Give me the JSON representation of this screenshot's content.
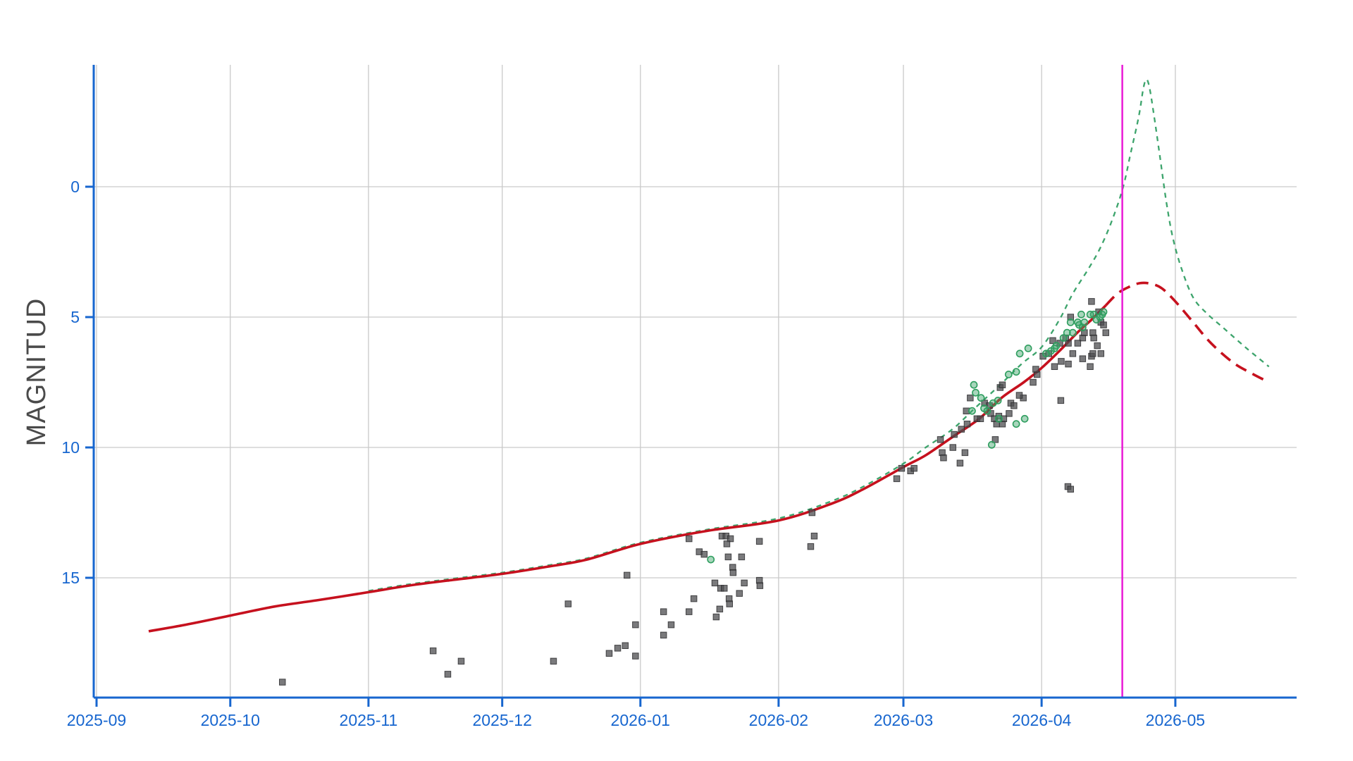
{
  "chart_data": {
    "type": "scatter",
    "title": "",
    "ylabel": "MAGNITUD",
    "xlabel": "",
    "x_axis": {
      "unit": "days since 2025-09-01",
      "ticks": [
        {
          "label": "2025-09",
          "day": 0
        },
        {
          "label": "2025-10",
          "day": 30
        },
        {
          "label": "2025-11",
          "day": 61
        },
        {
          "label": "2025-12",
          "day": 91
        },
        {
          "label": "2026-01",
          "day": 122
        },
        {
          "label": "2026-02",
          "day": 153
        },
        {
          "label": "2026-03",
          "day": 181
        },
        {
          "label": "2026-04",
          "day": 212
        },
        {
          "label": "2026-05",
          "day": 242
        }
      ],
      "domain_days": [
        -0.6,
        269
      ]
    },
    "y_axis": {
      "ticks": [
        0,
        5,
        10,
        15
      ],
      "inverted": true,
      "domain_mag": [
        -4.68,
        19.6
      ],
      "grid": true
    },
    "marker_line": {
      "day": 230.1,
      "approx_date": "2026-04-19"
    },
    "colors": {
      "axis": "#1766cf",
      "grid": "#c9c9c9",
      "red_curve": "#c6111e",
      "green_curve": "#3da46c",
      "marker_line": "#e91ad6",
      "square_fill": "#4e4e50",
      "square_stroke": "#2e2e30",
      "circle_fill": "#3fa56b",
      "circle_stroke": "#2f9e5f",
      "y_title": "#4a4a4a"
    },
    "series": [
      {
        "name": "red-solid-curve",
        "type": "line",
        "style": "solid",
        "points": [
          [
            11.7,
            17.05
          ],
          [
            20,
            16.8
          ],
          [
            30,
            16.45
          ],
          [
            40,
            16.1
          ],
          [
            50,
            15.85
          ],
          [
            61,
            15.55
          ],
          [
            70,
            15.3
          ],
          [
            80,
            15.08
          ],
          [
            91,
            14.85
          ],
          [
            102,
            14.55
          ],
          [
            110,
            14.3
          ],
          [
            122,
            13.7
          ],
          [
            137,
            13.2
          ],
          [
            153,
            12.8
          ],
          [
            165,
            12.15
          ],
          [
            172,
            11.6
          ],
          [
            181,
            10.75
          ],
          [
            186,
            10.3
          ],
          [
            192,
            9.6
          ],
          [
            198,
            8.9
          ],
          [
            203,
            8.1
          ],
          [
            208,
            7.5
          ],
          [
            212,
            6.95
          ],
          [
            216,
            6.3
          ],
          [
            220,
            5.6
          ],
          [
            223.5,
            5.05
          ],
          [
            226.4,
            4.55
          ]
        ]
      },
      {
        "name": "red-dashed-curve",
        "type": "line",
        "style": "dashed",
        "points": [
          [
            226.4,
            4.55
          ],
          [
            229,
            4.1
          ],
          [
            231.5,
            3.85
          ],
          [
            234,
            3.7
          ],
          [
            236.5,
            3.72
          ],
          [
            239,
            3.9
          ],
          [
            242,
            4.4
          ],
          [
            246,
            5.2
          ],
          [
            250,
            6.0
          ],
          [
            255,
            6.75
          ],
          [
            259,
            7.15
          ],
          [
            263,
            7.5
          ]
        ]
      },
      {
        "name": "green-dashed-curve",
        "type": "line",
        "style": "dashed",
        "points": [
          [
            61,
            15.5
          ],
          [
            70,
            15.25
          ],
          [
            80,
            15.03
          ],
          [
            91,
            14.8
          ],
          [
            102,
            14.5
          ],
          [
            110,
            14.25
          ],
          [
            122,
            13.65
          ],
          [
            137,
            13.15
          ],
          [
            153,
            12.72
          ],
          [
            165,
            12.05
          ],
          [
            172,
            11.5
          ],
          [
            181,
            10.62
          ],
          [
            186,
            10.0
          ],
          [
            192,
            9.3
          ],
          [
            197,
            8.5
          ],
          [
            203,
            7.55
          ],
          [
            207.5,
            6.8
          ],
          [
            212,
            6.15
          ],
          [
            216,
            5.1
          ],
          [
            219,
            4.1
          ],
          [
            222.5,
            3.15
          ],
          [
            225.3,
            2.3
          ],
          [
            228,
            1.2
          ],
          [
            230.3,
            0.0
          ],
          [
            232,
            -1.3
          ],
          [
            233.8,
            -2.7
          ],
          [
            234.8,
            -3.75
          ],
          [
            235.5,
            -4.12
          ],
          [
            236.2,
            -3.8
          ],
          [
            237.2,
            -2.75
          ],
          [
            238.5,
            -1.2
          ],
          [
            240,
            0.6
          ],
          [
            241.5,
            2.0
          ],
          [
            243.5,
            3.2
          ],
          [
            246,
            4.25
          ],
          [
            249,
            4.85
          ],
          [
            253,
            5.45
          ],
          [
            258,
            6.2
          ],
          [
            263,
            6.9
          ]
        ]
      },
      {
        "name": "dark-square-observations",
        "type": "scatter",
        "marker": "square",
        "points": [
          [
            41.7,
            19.0
          ],
          [
            75.5,
            17.8
          ],
          [
            78.8,
            18.7
          ],
          [
            81.8,
            18.2
          ],
          [
            102.5,
            18.2
          ],
          [
            105.8,
            16.0
          ],
          [
            115.0,
            17.9
          ],
          [
            116.9,
            17.7
          ],
          [
            118.6,
            17.6
          ],
          [
            119.0,
            14.9
          ],
          [
            120.9,
            16.8
          ],
          [
            120.9,
            18.0
          ],
          [
            127.2,
            16.3
          ],
          [
            127.2,
            17.2
          ],
          [
            128.9,
            16.8
          ],
          [
            132.9,
            16.3
          ],
          [
            132.9,
            13.5
          ],
          [
            134.0,
            15.8
          ],
          [
            135.2,
            14.0
          ],
          [
            136.3,
            14.1
          ],
          [
            138.7,
            15.2
          ],
          [
            139.0,
            16.5
          ],
          [
            139.8,
            16.2
          ],
          [
            140.0,
            15.4
          ],
          [
            140.8,
            15.4
          ],
          [
            140.3,
            13.4
          ],
          [
            141.2,
            13.4
          ],
          [
            142.2,
            13.5
          ],
          [
            141.4,
            13.7
          ],
          [
            141.7,
            14.2
          ],
          [
            141.9,
            15.8
          ],
          [
            142.0,
            16.0
          ],
          [
            142.7,
            14.6
          ],
          [
            142.8,
            14.8
          ],
          [
            144.2,
            15.6
          ],
          [
            144.7,
            14.2
          ],
          [
            145.3,
            15.2
          ],
          [
            148.7,
            13.6
          ],
          [
            148.7,
            15.1
          ],
          [
            148.8,
            15.3
          ],
          [
            160.5,
            12.5
          ],
          [
            161.0,
            13.4
          ],
          [
            160.2,
            13.8
          ],
          [
            179.5,
            11.2
          ],
          [
            180.6,
            10.8
          ],
          [
            182.6,
            10.9
          ],
          [
            183.4,
            10.8
          ],
          [
            189.3,
            9.7
          ],
          [
            189.7,
            10.2
          ],
          [
            190.0,
            10.4
          ],
          [
            192.1,
            10.0
          ],
          [
            192.4,
            9.5
          ],
          [
            193.7,
            10.6
          ],
          [
            194.0,
            9.3
          ],
          [
            194.8,
            10.2
          ],
          [
            195.1,
            8.6
          ],
          [
            195.3,
            9.1
          ],
          [
            196.0,
            8.1
          ],
          [
            197.5,
            8.9
          ],
          [
            198.3,
            8.9
          ],
          [
            199.2,
            8.3
          ],
          [
            200.3,
            8.4
          ],
          [
            200.6,
            8.7
          ],
          [
            201.4,
            8.9
          ],
          [
            201.6,
            9.7
          ],
          [
            202.4,
            8.8
          ],
          [
            201.9,
            9.1
          ],
          [
            203.2,
            9.1
          ],
          [
            203.5,
            8.9
          ],
          [
            204.7,
            8.7
          ],
          [
            205.1,
            8.3
          ],
          [
            205.8,
            8.4
          ],
          [
            207.9,
            8.1
          ],
          [
            202.7,
            7.7
          ],
          [
            203.2,
            7.6
          ],
          [
            207.0,
            8.0
          ],
          [
            210.1,
            7.5
          ],
          [
            211.0,
            7.2
          ],
          [
            216.3,
            8.2
          ],
          [
            217.9,
            11.5
          ],
          [
            218.5,
            11.6
          ],
          [
            223.2,
            4.4
          ],
          [
            224.8,
            4.8
          ],
          [
            225.3,
            5.2
          ],
          [
            225.9,
            5.3
          ],
          [
            226.4,
            5.6
          ],
          [
            223.5,
            5.6
          ],
          [
            223.7,
            5.8
          ],
          [
            224.5,
            6.1
          ],
          [
            225.3,
            6.4
          ],
          [
            223.2,
            6.5
          ],
          [
            221.2,
            5.8
          ],
          [
            221.6,
            5.6
          ],
          [
            220.1,
            6.0
          ],
          [
            218.5,
            5.0
          ],
          [
            218.0,
            6.0
          ],
          [
            217.4,
            5.8
          ],
          [
            216.1,
            6.0
          ],
          [
            214.5,
            5.9
          ],
          [
            216.4,
            6.7
          ],
          [
            219.0,
            6.4
          ],
          [
            221.2,
            6.6
          ],
          [
            222.9,
            6.9
          ],
          [
            223.5,
            6.4
          ],
          [
            218.0,
            6.8
          ],
          [
            214.9,
            6.9
          ],
          [
            213.6,
            6.4
          ],
          [
            212.3,
            6.5
          ],
          [
            210.7,
            7.0
          ]
        ]
      },
      {
        "name": "green-circle-observations",
        "type": "scatter",
        "marker": "circle",
        "points": [
          [
            137.8,
            14.3
          ],
          [
            196.4,
            8.6
          ],
          [
            196.8,
            7.6
          ],
          [
            197.2,
            7.9
          ],
          [
            198.4,
            8.1
          ],
          [
            199.1,
            8.5
          ],
          [
            199.8,
            8.6
          ],
          [
            200.8,
            9.9
          ],
          [
            201.1,
            8.3
          ],
          [
            202.2,
            8.2
          ],
          [
            202.4,
            8.9
          ],
          [
            206.3,
            9.1
          ],
          [
            208.2,
            8.9
          ],
          [
            204.6,
            7.2
          ],
          [
            206.3,
            7.1
          ],
          [
            207.1,
            6.4
          ],
          [
            209.0,
            6.2
          ],
          [
            225.6,
            4.9
          ],
          [
            225.9,
            4.8
          ],
          [
            225.1,
            5.0
          ],
          [
            224.3,
            5.1
          ],
          [
            223.7,
            4.9
          ],
          [
            222.9,
            4.9
          ],
          [
            220.9,
            4.9
          ],
          [
            220.1,
            5.2
          ],
          [
            220.4,
            5.3
          ],
          [
            221.2,
            5.4
          ],
          [
            221.6,
            5.2
          ],
          [
            218.5,
            5.2
          ],
          [
            219.0,
            5.6
          ],
          [
            217.7,
            5.6
          ],
          [
            216.9,
            5.8
          ],
          [
            215.3,
            6.1
          ],
          [
            214.9,
            6.2
          ],
          [
            214.1,
            6.3
          ],
          [
            213.0,
            6.4
          ]
        ]
      }
    ],
    "legend": null
  }
}
